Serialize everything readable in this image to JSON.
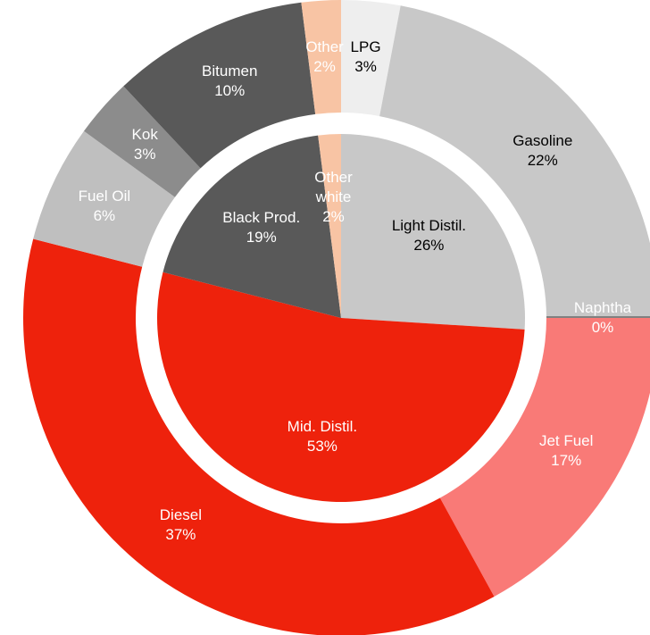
{
  "chart_data": {
    "type": "sunburst",
    "rings": [
      {
        "categories": [
          "Light Distil.",
          "Mid. Distil.",
          "Black Prod.",
          "Other white"
        ],
        "values": [
          26,
          53,
          19,
          2
        ],
        "value_labels": [
          "26%",
          "53%",
          "19%",
          "2%"
        ],
        "colors": [
          "#c8c8c8",
          "#ee220c",
          "#595959",
          "#f8c4a4"
        ],
        "label_colors": [
          "#000000",
          "#ffffff",
          "#ffffff",
          "#ffffff"
        ]
      },
      {
        "categories": [
          "LPG",
          "Gasoline",
          "Naphtha",
          "Jet Fuel",
          "Diesel",
          "Fuel Oil",
          "Kok",
          "Bitumen",
          "Other"
        ],
        "values": [
          3,
          22,
          0,
          17,
          37,
          6,
          3,
          10,
          2
        ],
        "value_labels": [
          "3%",
          "22%",
          "0%",
          "17%",
          "37%",
          "6%",
          "3%",
          "10%",
          "2%"
        ],
        "colors": [
          "#eeeeee",
          "#c8c8c8",
          "#808080",
          "#f97a77",
          "#ee220c",
          "#bfbfbf",
          "#8c8c8c",
          "#595959",
          "#f8c4a4"
        ],
        "label_colors": [
          "#000000",
          "#000000",
          "#ffffff",
          "#ffffff",
          "#ffffff",
          "#ffffff",
          "#ffffff",
          "#ffffff",
          "#ffffff"
        ]
      }
    ]
  }
}
